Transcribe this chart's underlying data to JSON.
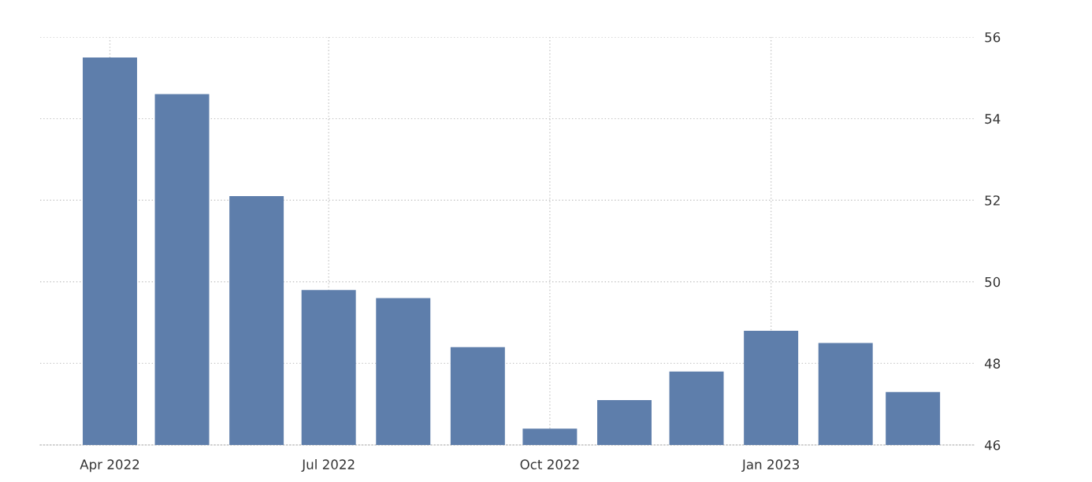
{
  "chart_data": {
    "type": "bar",
    "x": [
      "2022-04",
      "2022-05",
      "2022-06",
      "2022-07",
      "2022-08",
      "2022-09",
      "2022-10",
      "2022-11",
      "2022-12",
      "2023-01",
      "2023-02",
      "2023-03"
    ],
    "values": [
      55.5,
      54.6,
      52.1,
      49.8,
      49.6,
      48.4,
      46.4,
      47.1,
      47.8,
      48.8,
      48.5,
      47.3
    ],
    "color": "#5e7eab",
    "xlim": [
      "2022-03-03",
      "2023-03-27"
    ],
    "xticks": [
      {
        "value": "2022-04",
        "label": "Apr 2022"
      },
      {
        "value": "2022-07",
        "label": "Jul 2022"
      },
      {
        "value": "2022-10",
        "label": "Oct 2022"
      },
      {
        "value": "2023-01",
        "label": "Jan 2023"
      }
    ],
    "ylim": [
      46,
      56
    ],
    "yticks": [
      46,
      48,
      50,
      52,
      54,
      56
    ],
    "grid": true
  }
}
